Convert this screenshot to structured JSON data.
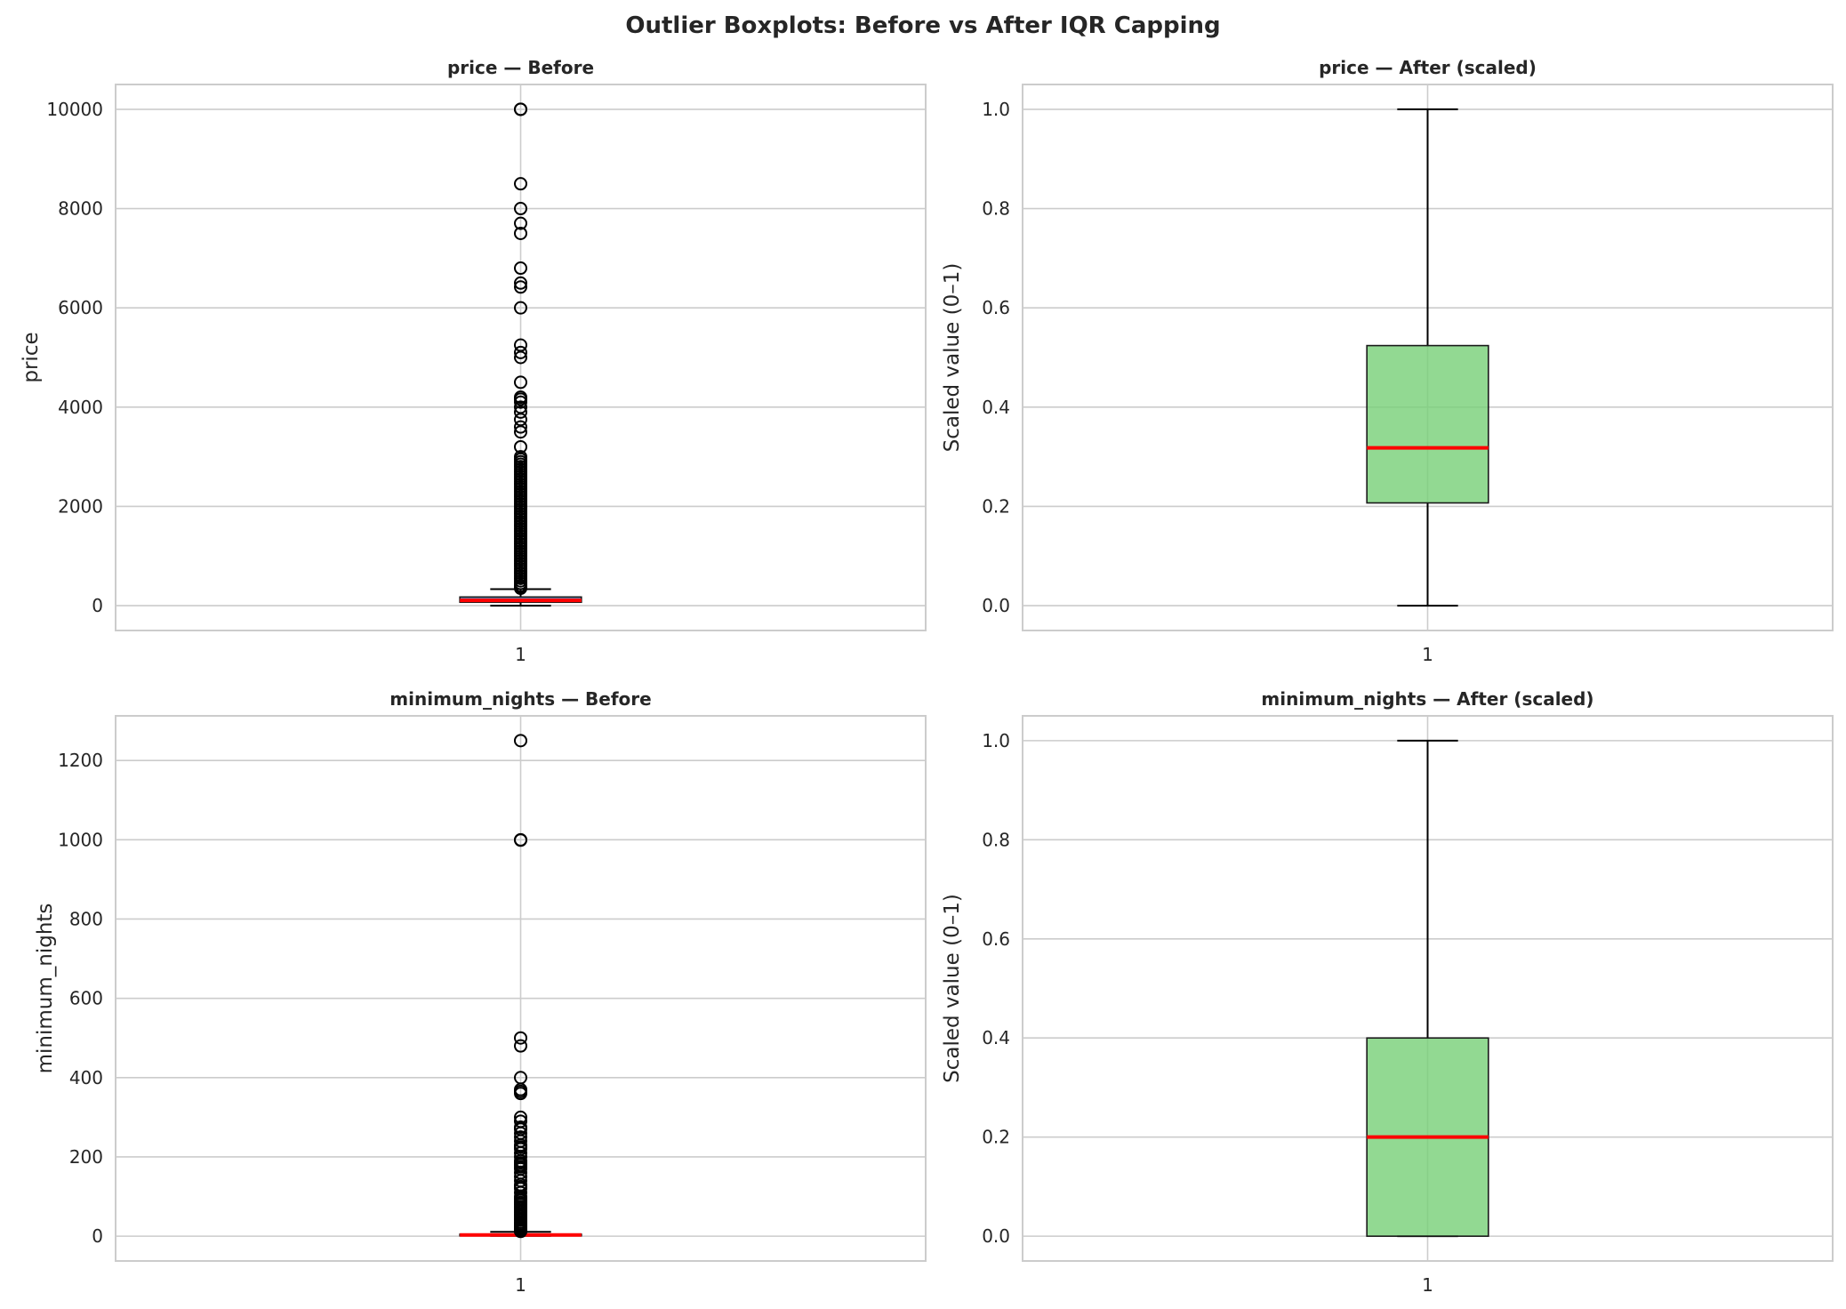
{
  "title": "Outlier Boxplots: Before vs After IQR Capping",
  "style": {
    "grid_color": "#cccccc",
    "spine_color": "#cccccc",
    "median_color": "#ff0000",
    "before_box_color": "#4c72b0",
    "after_box_color": "#77d077",
    "flier_color": "#000000"
  },
  "chart_data": [
    {
      "type": "boxplot",
      "title": "price — Before",
      "ylabel": "price",
      "xlabel": "",
      "categories": [
        "1"
      ],
      "ylim": [
        -500,
        10500
      ],
      "yticks": [
        0,
        2000,
        4000,
        6000,
        8000,
        10000
      ],
      "ytick_labels": [
        "0",
        "2000",
        "4000",
        "6000",
        "8000",
        "10000"
      ],
      "grid": true,
      "box": {
        "whisker_low": 0,
        "q1": 69,
        "median": 106,
        "q3": 175,
        "whisker_high": 334,
        "fill": "before"
      },
      "fliers": [
        10000,
        9999,
        8500,
        8000,
        7703,
        7500,
        6800,
        6500,
        6419,
        6000,
        5250,
        5100,
        5000,
        4500,
        4200,
        4160,
        4100,
        4000,
        3900,
        3750,
        3600,
        3500,
        3200,
        3000,
        2950,
        2900,
        2850,
        2800,
        2750,
        2700,
        2650,
        2600,
        2550,
        2500,
        2450,
        2400,
        2350,
        2300,
        2250,
        2200,
        2150,
        2100,
        2050,
        2000,
        1950,
        1900,
        1850,
        1800,
        1750,
        1700,
        1650,
        1600,
        1550,
        1500,
        1450,
        1400,
        1350,
        1300,
        1250,
        1200,
        1150,
        1100,
        1050,
        1000,
        950,
        900,
        850,
        800,
        750,
        700,
        650,
        600,
        550,
        500,
        450,
        400,
        375,
        350
      ]
    },
    {
      "type": "boxplot",
      "title": "price — After (scaled)",
      "ylabel": "Scaled value (0–1)",
      "xlabel": "",
      "categories": [
        "1"
      ],
      "ylim": [
        -0.05,
        1.05
      ],
      "yticks": [
        0.0,
        0.2,
        0.4,
        0.6,
        0.8,
        1.0
      ],
      "ytick_labels": [
        "0.0",
        "0.2",
        "0.4",
        "0.6",
        "0.8",
        "1.0"
      ],
      "grid": true,
      "box": {
        "whisker_low": 0.0,
        "q1": 0.207,
        "median": 0.318,
        "q3": 0.524,
        "whisker_high": 1.0,
        "fill": "after"
      },
      "fliers": []
    },
    {
      "type": "boxplot",
      "title": "minimum_nights — Before",
      "ylabel": "minimum_nights",
      "xlabel": "",
      "categories": [
        "1"
      ],
      "ylim": [
        -62.5,
        1312.5
      ],
      "yticks": [
        0,
        200,
        400,
        600,
        800,
        1000,
        1200
      ],
      "ytick_labels": [
        "0",
        "200",
        "400",
        "600",
        "800",
        "1000",
        "1200"
      ],
      "grid": true,
      "box": {
        "whisker_low": 1,
        "q1": 1,
        "median": 3,
        "q3": 5,
        "whisker_high": 11,
        "fill": "before"
      },
      "fliers": [
        1250,
        1000,
        999,
        500,
        480,
        400,
        370,
        365,
        360,
        300,
        290,
        275,
        270,
        260,
        250,
        240,
        230,
        225,
        220,
        210,
        200,
        190,
        185,
        180,
        175,
        170,
        160,
        150,
        140,
        130,
        125,
        120,
        110,
        100,
        95,
        90,
        85,
        80,
        75,
        70,
        65,
        60,
        55,
        50,
        45,
        40,
        35,
        31,
        30,
        29,
        28,
        25,
        21,
        20,
        18,
        15,
        14,
        13,
        12
      ]
    },
    {
      "type": "boxplot",
      "title": "minimum_nights — After (scaled)",
      "ylabel": "Scaled value (0–1)",
      "xlabel": "",
      "categories": [
        "1"
      ],
      "ylim": [
        -0.05,
        1.05
      ],
      "yticks": [
        0.0,
        0.2,
        0.4,
        0.6,
        0.8,
        1.0
      ],
      "ytick_labels": [
        "0.0",
        "0.2",
        "0.4",
        "0.6",
        "0.8",
        "1.0"
      ],
      "grid": true,
      "box": {
        "whisker_low": 0.0,
        "q1": 0.0,
        "median": 0.2,
        "q3": 0.4,
        "whisker_high": 1.0,
        "fill": "after"
      },
      "fliers": []
    }
  ]
}
